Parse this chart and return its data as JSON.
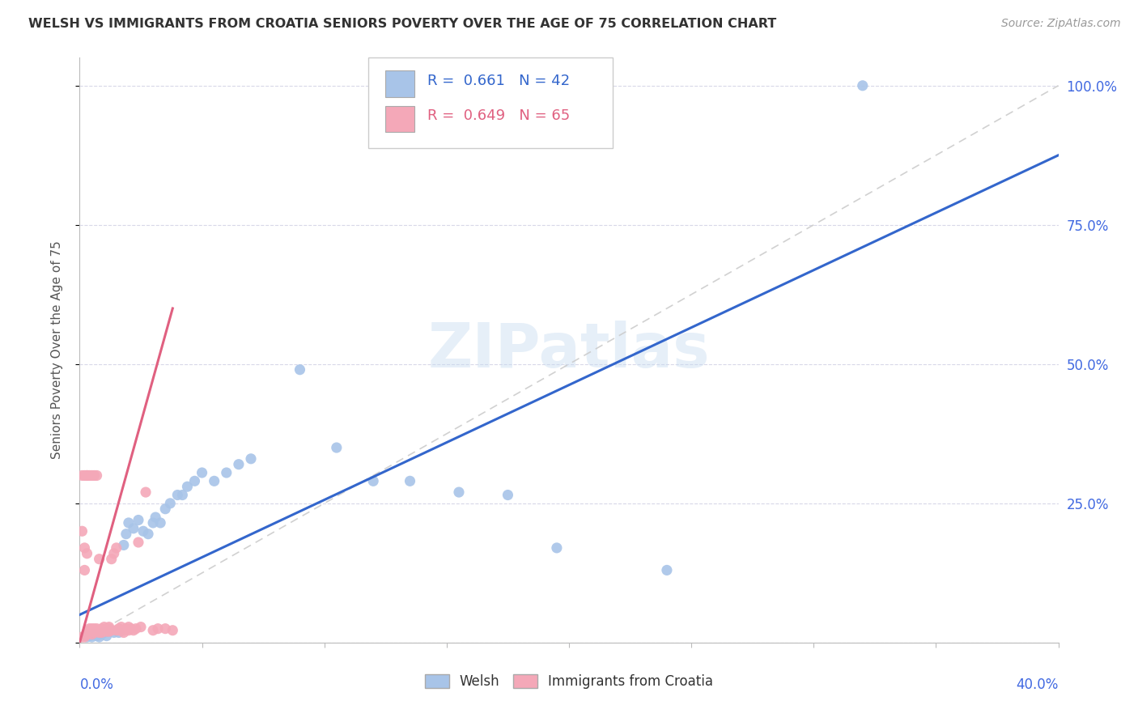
{
  "title": "WELSH VS IMMIGRANTS FROM CROATIA SENIORS POVERTY OVER THE AGE OF 75 CORRELATION CHART",
  "source": "Source: ZipAtlas.com",
  "ylabel": "Seniors Poverty Over the Age of 75",
  "watermark": "ZIPatlas",
  "legend_welsh_R": "0.661",
  "legend_welsh_N": "42",
  "legend_croatia_R": "0.649",
  "legend_croatia_N": "65",
  "welsh_color": "#a8c4e8",
  "croatia_color": "#f4a8b8",
  "welsh_line_color": "#3366cc",
  "croatia_line_color": "#e06080",
  "diagonal_color": "#cccccc",
  "title_color": "#333333",
  "axis_label_color": "#4169e1",
  "xlim": [
    0.0,
    0.4
  ],
  "ylim": [
    0.0,
    1.05
  ],
  "welsh_points_x": [
    0.003,
    0.004,
    0.005,
    0.006,
    0.007,
    0.008,
    0.009,
    0.01,
    0.011,
    0.012,
    0.014,
    0.016,
    0.018,
    0.019,
    0.02,
    0.022,
    0.024,
    0.026,
    0.028,
    0.03,
    0.031,
    0.033,
    0.035,
    0.037,
    0.04,
    0.042,
    0.044,
    0.047,
    0.05,
    0.055,
    0.06,
    0.065,
    0.07,
    0.09,
    0.105,
    0.12,
    0.135,
    0.155,
    0.175,
    0.195,
    0.24,
    0.32
  ],
  "welsh_points_y": [
    0.01,
    0.012,
    0.01,
    0.015,
    0.012,
    0.01,
    0.015,
    0.018,
    0.012,
    0.02,
    0.018,
    0.018,
    0.175,
    0.195,
    0.215,
    0.205,
    0.22,
    0.2,
    0.195,
    0.215,
    0.225,
    0.215,
    0.24,
    0.25,
    0.265,
    0.265,
    0.28,
    0.29,
    0.305,
    0.29,
    0.305,
    0.32,
    0.33,
    0.49,
    0.35,
    0.29,
    0.29,
    0.27,
    0.265,
    0.17,
    0.13,
    1.0
  ],
  "croatia_points_x": [
    0.001,
    0.001,
    0.002,
    0.002,
    0.003,
    0.003,
    0.003,
    0.004,
    0.004,
    0.004,
    0.005,
    0.005,
    0.005,
    0.006,
    0.006,
    0.006,
    0.007,
    0.007,
    0.007,
    0.008,
    0.008,
    0.008,
    0.009,
    0.009,
    0.009,
    0.01,
    0.01,
    0.011,
    0.011,
    0.012,
    0.012,
    0.012,
    0.013,
    0.013,
    0.014,
    0.015,
    0.015,
    0.016,
    0.016,
    0.017,
    0.017,
    0.018,
    0.018,
    0.019,
    0.02,
    0.02,
    0.021,
    0.022,
    0.023,
    0.024,
    0.025,
    0.027,
    0.03,
    0.032,
    0.035,
    0.038,
    0.002,
    0.001,
    0.002,
    0.003,
    0.003,
    0.004,
    0.005,
    0.006,
    0.007
  ],
  "croatia_points_y": [
    0.01,
    0.2,
    0.01,
    0.17,
    0.015,
    0.018,
    0.16,
    0.018,
    0.022,
    0.025,
    0.015,
    0.022,
    0.025,
    0.018,
    0.022,
    0.025,
    0.02,
    0.022,
    0.025,
    0.018,
    0.022,
    0.15,
    0.018,
    0.022,
    0.025,
    0.022,
    0.028,
    0.02,
    0.025,
    0.02,
    0.025,
    0.028,
    0.022,
    0.15,
    0.16,
    0.17,
    0.022,
    0.022,
    0.025,
    0.022,
    0.028,
    0.018,
    0.022,
    0.025,
    0.022,
    0.028,
    0.025,
    0.022,
    0.025,
    0.18,
    0.028,
    0.27,
    0.022,
    0.025,
    0.025,
    0.022,
    0.13,
    0.3,
    0.3,
    0.3,
    0.3,
    0.3,
    0.3,
    0.3,
    0.3
  ],
  "welsh_line_x0": 0.0,
  "welsh_line_y0": 0.05,
  "welsh_line_x1": 0.4,
  "welsh_line_y1": 0.875,
  "croatia_line_x0": 0.0,
  "croatia_line_y0": 0.0,
  "croatia_line_x1": 0.038,
  "croatia_line_y1": 0.6
}
